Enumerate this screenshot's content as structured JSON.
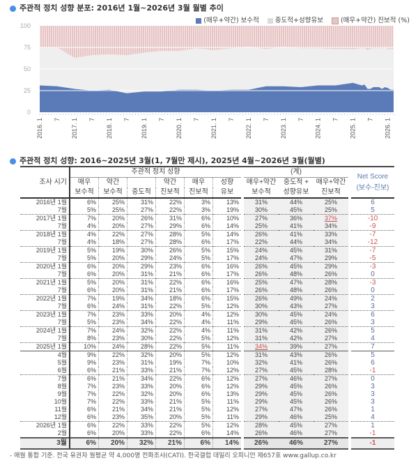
{
  "chart_title": "주관적 정치 성향 분포: 2016년 1월~2026년 3월 월별 추이",
  "table_title": "주관적 정치 성향: 2016~2025년 3월(1, 7월만 제시), 2025년 4월~2026년 3월(월별)",
  "footnote": "- 매월 통합 기준. 전국 유권자 월평균 약 4,000명 전화조사(CATI). 한국갤럽 데일리 오피니언 제657호 www.gallup.co.kr",
  "colors": {
    "conservative": "#5b7bb8",
    "middle": "#efefef",
    "progressive": "#e6c4c4",
    "net_positive": "#5a6a9a",
    "net_negative": "#d05050",
    "accent": "#4a90e2"
  },
  "chart_data": {
    "type": "area",
    "stacked": "100%",
    "title": "주관적 정치 성향 분포: 2016년 1월~2026년 3월 월별 추이",
    "legend": [
      "(매우+약간) 보수적",
      "중도적+성향유보",
      "(매우+약간) 진보적 (%)"
    ],
    "legend_placement": "top-right",
    "ylim": [
      0,
      100
    ],
    "yticks": [
      0,
      25,
      50,
      75,
      100
    ],
    "xtick_labels": [
      "2016. 1",
      "7",
      "2017. 1",
      "7",
      "2018. 1",
      "7",
      "2019. 1",
      "7",
      "2020. 1",
      "7",
      "2021. 1",
      "7",
      "2022. 1",
      "7",
      "2023. 1",
      "7",
      "2024. 1",
      "7",
      "2025. 1",
      "7",
      "2026. 1"
    ],
    "x": [
      "2016-01",
      "2016-07",
      "2017-01",
      "2017-07",
      "2018-01",
      "2018-07",
      "2019-01",
      "2019-07",
      "2020-01",
      "2020-07",
      "2021-01",
      "2021-07",
      "2022-01",
      "2022-07",
      "2023-01",
      "2023-07",
      "2024-01",
      "2024-07",
      "2025-01",
      "2025-04",
      "2025-05",
      "2025-06",
      "2025-07",
      "2025-08",
      "2025-09",
      "2025-10",
      "2025-11",
      "2025-12",
      "2026-01",
      "2026-02",
      "2026-03"
    ],
    "series": [
      {
        "name": "(매우+약간) 보수적",
        "values": [
          31,
          30,
          27,
          25,
          26,
          22,
          24,
          24,
          26,
          26,
          25,
          26,
          26,
          30,
          30,
          29,
          31,
          31,
          34,
          31,
          32,
          27,
          27,
          29,
          29,
          29,
          27,
          29,
          28,
          26,
          26
        ]
      },
      {
        "name": "중도적+성향유보",
        "values": [
          44,
          45,
          36,
          41,
          41,
          44,
          45,
          47,
          45,
          48,
          47,
          48,
          49,
          43,
          45,
          45,
          42,
          42,
          39,
          43,
          41,
          45,
          46,
          45,
          45,
          45,
          47,
          46,
          45,
          46,
          46
        ]
      },
      {
        "name": "(매우+약간) 진보적 (%)",
        "values": [
          25,
          25,
          37,
          34,
          33,
          34,
          31,
          29,
          29,
          26,
          28,
          26,
          24,
          27,
          24,
          26,
          26,
          27,
          27,
          26,
          26,
          28,
          27,
          26,
          26,
          26,
          26,
          25,
          27,
          27,
          27
        ]
      }
    ]
  },
  "table": {
    "header": {
      "period": "조사 시기",
      "group1": "주관적 정치 성향",
      "group2": "(계)",
      "net": [
        "Net Score",
        "(보수-진보)"
      ],
      "cols1": [
        [
          "매우",
          "보수적"
        ],
        [
          "약간",
          "보수적"
        ],
        [
          "",
          "중도적"
        ],
        [
          "약간",
          "진보적"
        ],
        [
          "매우",
          "진보적"
        ],
        [
          "성향",
          "유보"
        ]
      ],
      "cols2": [
        [
          "매우+약간",
          "보수적"
        ],
        [
          "중도적 +",
          "성향유보"
        ],
        [
          "매우+약간",
          "진보적"
        ]
      ]
    },
    "rows": [
      {
        "label": "2016년 1월",
        "v": [
          "6%",
          "25%",
          "31%",
          "22%",
          "3%",
          "13%"
        ],
        "s": [
          "31%",
          "44%",
          "25%"
        ],
        "net": "6",
        "line": "solid"
      },
      {
        "label": "7월",
        "v": [
          "5%",
          "25%",
          "27%",
          "22%",
          "3%",
          "19%"
        ],
        "s": [
          "30%",
          "45%",
          "25%"
        ],
        "net": "5"
      },
      {
        "label": "2017년 1월",
        "v": [
          "7%",
          "20%",
          "26%",
          "31%",
          "6%",
          "10%"
        ],
        "s": [
          "27%",
          "36%",
          "37%"
        ],
        "net": "-10",
        "line": "dots",
        "hl": 2
      },
      {
        "label": "7월",
        "v": [
          "4%",
          "20%",
          "27%",
          "29%",
          "6%",
          "14%"
        ],
        "s": [
          "25%",
          "41%",
          "34%"
        ],
        "net": "-9"
      },
      {
        "label": "2018년 1월",
        "v": [
          "4%",
          "22%",
          "27%",
          "28%",
          "5%",
          "14%"
        ],
        "s": [
          "26%",
          "41%",
          "33%"
        ],
        "net": "-7",
        "line": "dots"
      },
      {
        "label": "7월",
        "v": [
          "4%",
          "18%",
          "27%",
          "28%",
          "6%",
          "17%"
        ],
        "s": [
          "22%",
          "44%",
          "34%"
        ],
        "net": "-12"
      },
      {
        "label": "2019년 1월",
        "v": [
          "5%",
          "19%",
          "30%",
          "26%",
          "5%",
          "15%"
        ],
        "s": [
          "24%",
          "45%",
          "31%"
        ],
        "net": "-7",
        "line": "dots"
      },
      {
        "label": "7월",
        "v": [
          "5%",
          "20%",
          "29%",
          "24%",
          "5%",
          "17%"
        ],
        "s": [
          "24%",
          "47%",
          "29%"
        ],
        "net": "-5"
      },
      {
        "label": "2020년 1월",
        "v": [
          "6%",
          "20%",
          "29%",
          "23%",
          "6%",
          "16%"
        ],
        "s": [
          "26%",
          "45%",
          "29%"
        ],
        "net": "-3",
        "line": "dots"
      },
      {
        "label": "7월",
        "v": [
          "6%",
          "20%",
          "31%",
          "21%",
          "6%",
          "17%"
        ],
        "s": [
          "26%",
          "48%",
          "26%"
        ],
        "net": "0"
      },
      {
        "label": "2021년 1월",
        "v": [
          "5%",
          "20%",
          "31%",
          "22%",
          "6%",
          "16%"
        ],
        "s": [
          "25%",
          "47%",
          "28%"
        ],
        "net": "-3",
        "line": "dots"
      },
      {
        "label": "7월",
        "v": [
          "6%",
          "20%",
          "31%",
          "21%",
          "6%",
          "17%"
        ],
        "s": [
          "26%",
          "48%",
          "26%"
        ],
        "net": "0"
      },
      {
        "label": "2022년 1월",
        "v": [
          "7%",
          "19%",
          "34%",
          "18%",
          "6%",
          "15%"
        ],
        "s": [
          "26%",
          "49%",
          "24%"
        ],
        "net": "2",
        "line": "dots"
      },
      {
        "label": "7월",
        "v": [
          "6%",
          "24%",
          "31%",
          "22%",
          "5%",
          "12%"
        ],
        "s": [
          "30%",
          "43%",
          "27%"
        ],
        "net": "3"
      },
      {
        "label": "2023년 1월",
        "v": [
          "7%",
          "23%",
          "33%",
          "20%",
          "4%",
          "12%"
        ],
        "s": [
          "30%",
          "45%",
          "24%"
        ],
        "net": "6",
        "line": "dots"
      },
      {
        "label": "7월",
        "v": [
          "5%",
          "23%",
          "34%",
          "22%",
          "4%",
          "11%"
        ],
        "s": [
          "29%",
          "45%",
          "26%"
        ],
        "net": "3"
      },
      {
        "label": "2024년 1월",
        "v": [
          "7%",
          "24%",
          "32%",
          "22%",
          "4%",
          "11%"
        ],
        "s": [
          "31%",
          "42%",
          "26%"
        ],
        "net": "5",
        "line": "dots"
      },
      {
        "label": "7월",
        "v": [
          "8%",
          "23%",
          "30%",
          "22%",
          "5%",
          "12%"
        ],
        "s": [
          "31%",
          "42%",
          "27%"
        ],
        "net": "4"
      },
      {
        "label": "2025년 1월",
        "v": [
          "10%",
          "24%",
          "28%",
          "22%",
          "5%",
          "11%"
        ],
        "s": [
          "34%",
          "39%",
          "27%"
        ],
        "net": "7",
        "line": "dots",
        "hl": 0
      },
      {
        "label": "4월",
        "v": [
          "9%",
          "22%",
          "32%",
          "20%",
          "5%",
          "12%"
        ],
        "s": [
          "31%",
          "43%",
          "26%"
        ],
        "net": "5",
        "line": "solid"
      },
      {
        "label": "5월",
        "v": [
          "9%",
          "23%",
          "31%",
          "19%",
          "7%",
          "10%"
        ],
        "s": [
          "32%",
          "41%",
          "26%"
        ],
        "net": "6"
      },
      {
        "label": "6월",
        "v": [
          "6%",
          "21%",
          "33%",
          "21%",
          "7%",
          "12%"
        ],
        "s": [
          "27%",
          "45%",
          "28%"
        ],
        "net": "-1"
      },
      {
        "label": "7월",
        "v": [
          "6%",
          "21%",
          "34%",
          "22%",
          "6%",
          "12%"
        ],
        "s": [
          "27%",
          "46%",
          "27%"
        ],
        "net": "0",
        "line": "dots"
      },
      {
        "label": "8월",
        "v": [
          "7%",
          "23%",
          "33%",
          "20%",
          "6%",
          "12%"
        ],
        "s": [
          "29%",
          "45%",
          "26%"
        ],
        "net": "3"
      },
      {
        "label": "9월",
        "v": [
          "7%",
          "22%",
          "32%",
          "20%",
          "6%",
          "13%"
        ],
        "s": [
          "29%",
          "45%",
          "26%"
        ],
        "net": "3"
      },
      {
        "label": "10월",
        "v": [
          "7%",
          "22%",
          "33%",
          "21%",
          "5%",
          "11%"
        ],
        "s": [
          "29%",
          "45%",
          "26%"
        ],
        "net": "3"
      },
      {
        "label": "11월",
        "v": [
          "6%",
          "21%",
          "34%",
          "21%",
          "5%",
          "12%"
        ],
        "s": [
          "27%",
          "47%",
          "26%"
        ],
        "net": "1"
      },
      {
        "label": "12월",
        "v": [
          "6%",
          "23%",
          "35%",
          "20%",
          "5%",
          "11%"
        ],
        "s": [
          "29%",
          "46%",
          "25%"
        ],
        "net": "4"
      },
      {
        "label": "2026년 1월",
        "v": [
          "6%",
          "22%",
          "33%",
          "22%",
          "5%",
          "12%"
        ],
        "s": [
          "28%",
          "45%",
          "27%"
        ],
        "net": "1",
        "line": "dots"
      },
      {
        "label": "2월",
        "v": [
          "6%",
          "20%",
          "33%",
          "22%",
          "6%",
          "14%"
        ],
        "s": [
          "26%",
          "46%",
          "27%"
        ],
        "net": "-1"
      },
      {
        "label": "3월",
        "v": [
          "6%",
          "20%",
          "32%",
          "21%",
          "6%",
          "14%"
        ],
        "s": [
          "26%",
          "46%",
          "27%"
        ],
        "net": "-1",
        "line": "final"
      }
    ]
  }
}
